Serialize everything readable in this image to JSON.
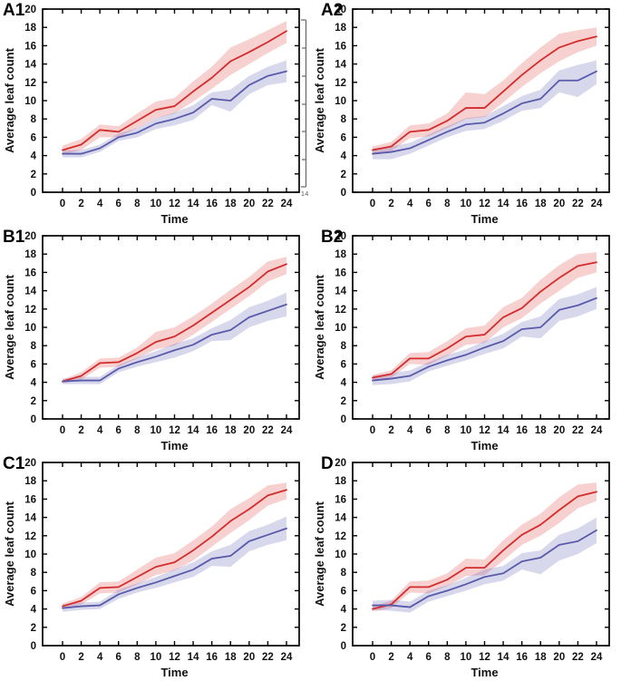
{
  "figure": {
    "background": "#ffffff",
    "axis_color": "#000000",
    "text_color": "#111111"
  },
  "colors": {
    "red_line": "#d42c2c",
    "red_band": "rgba(228,85,85,0.28)",
    "blue_line": "#5a5aaa",
    "blue_band": "rgba(100,100,185,0.25)"
  },
  "axis_fragment": {
    "label": "14"
  },
  "chart_data": [
    {
      "type": "line",
      "panel_label": "A1",
      "xlabel": "Time",
      "ylabel": "Average leaf count",
      "xlim": [
        -2,
        25.5
      ],
      "ylim": [
        0,
        20
      ],
      "xticks": [
        0,
        2,
        4,
        6,
        8,
        10,
        12,
        14,
        16,
        18,
        20,
        22,
        24
      ],
      "yticks": [
        0,
        2,
        4,
        6,
        8,
        10,
        12,
        14,
        16,
        18,
        20
      ],
      "grid": false,
      "legend": "none",
      "x": [
        0,
        2,
        4,
        6,
        8,
        10,
        12,
        14,
        16,
        18,
        20,
        22,
        24
      ],
      "series": [
        {
          "name": "red",
          "mean": [
            4.6,
            5.2,
            6.8,
            6.6,
            7.8,
            9.0,
            9.4,
            11.0,
            12.5,
            14.3,
            15.3,
            16.4,
            17.6
          ],
          "lower": [
            4.1,
            4.6,
            6.0,
            6.0,
            7.0,
            8.1,
            8.6,
            9.9,
            11.3,
            12.8,
            14.0,
            15.2,
            16.3
          ],
          "upper": [
            5.1,
            5.8,
            7.4,
            7.2,
            8.6,
            9.9,
            10.3,
            12.1,
            13.7,
            15.8,
            16.7,
            17.7,
            18.7
          ]
        },
        {
          "name": "blue",
          "mean": [
            4.2,
            4.2,
            4.8,
            6.0,
            6.5,
            7.5,
            8.0,
            8.7,
            10.2,
            10.0,
            11.7,
            12.7,
            13.2
          ],
          "lower": [
            3.8,
            3.8,
            4.4,
            5.6,
            6.0,
            6.9,
            7.3,
            7.9,
            9.5,
            8.8,
            10.7,
            11.7,
            12.0
          ],
          "upper": [
            4.6,
            4.6,
            5.2,
            6.4,
            7.0,
            8.1,
            8.7,
            9.5,
            10.9,
            11.2,
            12.7,
            13.7,
            14.4
          ]
        }
      ]
    },
    {
      "type": "line",
      "panel_label": "A2",
      "xlabel": "Time",
      "ylabel": "Average leaf count",
      "xlim": [
        -2,
        25.5
      ],
      "ylim": [
        0,
        20
      ],
      "xticks": [
        0,
        2,
        4,
        6,
        8,
        10,
        12,
        14,
        16,
        18,
        20,
        22,
        24
      ],
      "yticks": [
        0,
        2,
        4,
        6,
        8,
        10,
        12,
        14,
        16,
        18,
        20
      ],
      "grid": false,
      "legend": "none",
      "x": [
        0,
        2,
        4,
        6,
        8,
        10,
        12,
        14,
        16,
        18,
        20,
        22,
        24
      ],
      "series": [
        {
          "name": "red",
          "mean": [
            4.6,
            5.0,
            6.6,
            6.8,
            7.8,
            9.2,
            9.2,
            11.0,
            12.8,
            14.4,
            15.8,
            16.5,
            17.0
          ],
          "lower": [
            4.2,
            4.5,
            5.9,
            6.1,
            7.0,
            8.0,
            8.2,
            9.8,
            11.5,
            13.0,
            14.3,
            15.3,
            16.0
          ],
          "upper": [
            5.0,
            5.5,
            7.3,
            7.5,
            8.6,
            10.9,
            10.7,
            12.2,
            14.1,
            15.8,
            17.3,
            17.7,
            18.0
          ]
        },
        {
          "name": "blue",
          "mean": [
            4.2,
            4.4,
            4.8,
            5.7,
            6.6,
            7.4,
            7.6,
            8.6,
            9.7,
            10.2,
            12.2,
            12.2,
            13.2
          ],
          "lower": [
            3.6,
            3.6,
            4.2,
            5.1,
            6.0,
            6.7,
            6.9,
            7.8,
            8.9,
            9.2,
            10.9,
            10.4,
            11.8
          ],
          "upper": [
            4.8,
            5.0,
            5.4,
            6.3,
            7.2,
            8.1,
            8.3,
            9.4,
            10.5,
            11.2,
            13.3,
            13.9,
            14.4
          ]
        }
      ]
    },
    {
      "type": "line",
      "panel_label": "B1",
      "xlabel": "Time",
      "ylabel": "Average leaf count",
      "xlim": [
        -2,
        25.5
      ],
      "ylim": [
        0,
        20
      ],
      "xticks": [
        0,
        2,
        4,
        6,
        8,
        10,
        12,
        14,
        16,
        18,
        20,
        22,
        24
      ],
      "yticks": [
        0,
        2,
        4,
        6,
        8,
        10,
        12,
        14,
        16,
        18,
        20
      ],
      "grid": false,
      "legend": "none",
      "x": [
        0,
        2,
        4,
        6,
        8,
        10,
        12,
        14,
        16,
        18,
        20,
        22,
        24
      ],
      "series": [
        {
          "name": "red",
          "mean": [
            4.1,
            4.7,
            6.1,
            6.2,
            7.2,
            8.4,
            9.0,
            10.2,
            11.6,
            13.0,
            14.4,
            16.1,
            16.9
          ],
          "lower": [
            3.9,
            4.3,
            5.6,
            5.7,
            6.6,
            7.6,
            8.0,
            9.2,
            10.6,
            12.0,
            13.4,
            15.0,
            15.8
          ],
          "upper": [
            4.3,
            5.1,
            6.6,
            6.7,
            7.8,
            9.5,
            10.0,
            11.2,
            12.6,
            14.1,
            15.5,
            17.2,
            17.7
          ]
        },
        {
          "name": "blue",
          "mean": [
            4.1,
            4.2,
            4.2,
            5.5,
            6.2,
            6.8,
            7.5,
            8.1,
            9.2,
            9.7,
            11.1,
            11.8,
            12.5
          ],
          "lower": [
            3.8,
            3.8,
            3.8,
            5.1,
            5.7,
            6.2,
            6.7,
            7.4,
            8.5,
            8.6,
            10.0,
            10.7,
            11.2
          ],
          "upper": [
            4.4,
            4.6,
            4.6,
            5.9,
            6.7,
            7.4,
            8.2,
            8.8,
            9.9,
            10.8,
            12.2,
            12.9,
            13.8
          ]
        }
      ]
    },
    {
      "type": "line",
      "panel_label": "B2",
      "xlabel": "Time",
      "ylabel": "Average leaf count",
      "xlim": [
        -2,
        25.5
      ],
      "ylim": [
        0,
        20
      ],
      "xticks": [
        0,
        2,
        4,
        6,
        8,
        10,
        12,
        14,
        16,
        18,
        20,
        22,
        24
      ],
      "yticks": [
        0,
        2,
        4,
        6,
        8,
        10,
        12,
        14,
        16,
        18,
        20
      ],
      "grid": false,
      "legend": "none",
      "x": [
        0,
        2,
        4,
        6,
        8,
        10,
        12,
        14,
        16,
        18,
        20,
        22,
        24
      ],
      "series": [
        {
          "name": "red",
          "mean": [
            4.5,
            4.9,
            6.6,
            6.6,
            7.7,
            9.0,
            9.2,
            11.1,
            12.1,
            13.9,
            15.4,
            16.7,
            17.1
          ],
          "lower": [
            4.2,
            4.5,
            6.0,
            5.9,
            6.9,
            8.1,
            8.3,
            10.0,
            11.0,
            12.6,
            14.0,
            15.4,
            16.0
          ],
          "upper": [
            4.8,
            5.3,
            7.2,
            7.3,
            8.5,
            9.9,
            10.2,
            12.2,
            13.2,
            15.2,
            16.8,
            18.0,
            18.2
          ]
        },
        {
          "name": "blue",
          "mean": [
            4.2,
            4.4,
            4.7,
            5.7,
            6.4,
            7.0,
            7.8,
            8.5,
            9.8,
            10.0,
            11.9,
            12.4,
            13.2
          ],
          "lower": [
            3.7,
            3.8,
            4.1,
            5.2,
            5.8,
            6.4,
            7.1,
            7.7,
            9.0,
            8.8,
            10.7,
            11.2,
            12.0
          ],
          "upper": [
            4.7,
            5.0,
            5.3,
            6.2,
            7.0,
            7.6,
            8.5,
            9.3,
            10.6,
            11.2,
            13.1,
            13.6,
            14.4
          ]
        }
      ]
    },
    {
      "type": "line",
      "panel_label": "C1",
      "xlabel": "Time",
      "ylabel": "Average leaf count",
      "xlim": [
        -2,
        25.5
      ],
      "ylim": [
        0,
        20
      ],
      "xticks": [
        0,
        2,
        4,
        6,
        8,
        10,
        12,
        14,
        16,
        18,
        20,
        22,
        24
      ],
      "yticks": [
        0,
        2,
        4,
        6,
        8,
        10,
        12,
        14,
        16,
        18,
        20
      ],
      "grid": false,
      "legend": "none",
      "x": [
        0,
        2,
        4,
        6,
        8,
        10,
        12,
        14,
        16,
        18,
        20,
        22,
        24
      ],
      "series": [
        {
          "name": "red",
          "mean": [
            4.3,
            4.9,
            6.3,
            6.4,
            7.5,
            8.6,
            9.1,
            10.4,
            11.9,
            13.6,
            14.9,
            16.4,
            17.0
          ],
          "lower": [
            4.0,
            4.5,
            5.7,
            5.8,
            6.7,
            7.7,
            8.2,
            9.3,
            10.8,
            12.3,
            13.7,
            15.3,
            16.0
          ],
          "upper": [
            4.6,
            5.3,
            6.9,
            7.0,
            8.3,
            9.6,
            10.1,
            11.5,
            13.0,
            14.9,
            16.1,
            17.5,
            17.8
          ]
        },
        {
          "name": "blue",
          "mean": [
            4.1,
            4.3,
            4.4,
            5.6,
            6.3,
            6.9,
            7.6,
            8.3,
            9.5,
            9.8,
            11.4,
            12.1,
            12.8
          ],
          "lower": [
            3.7,
            3.9,
            4.0,
            5.1,
            5.8,
            6.3,
            6.9,
            7.5,
            8.7,
            8.6,
            10.3,
            11.0,
            11.5
          ],
          "upper": [
            4.5,
            4.7,
            4.8,
            6.1,
            6.8,
            7.5,
            8.3,
            9.1,
            10.3,
            11.0,
            12.5,
            13.2,
            14.1
          ]
        }
      ]
    },
    {
      "type": "line",
      "panel_label": "D",
      "xlabel": "Time",
      "ylabel": "Average leaf count",
      "xlim": [
        -2,
        25.5
      ],
      "ylim": [
        0,
        20
      ],
      "xticks": [
        0,
        2,
        4,
        6,
        8,
        10,
        12,
        14,
        16,
        18,
        20,
        22,
        24
      ],
      "yticks": [
        0,
        2,
        4,
        6,
        8,
        10,
        12,
        14,
        16,
        18,
        20
      ],
      "grid": false,
      "legend": "none",
      "x": [
        0,
        2,
        4,
        6,
        8,
        10,
        12,
        14,
        16,
        18,
        20,
        22,
        24
      ],
      "series": [
        {
          "name": "red",
          "mean": [
            4.0,
            4.5,
            6.4,
            6.4,
            7.2,
            8.5,
            8.5,
            10.4,
            12.1,
            13.2,
            14.8,
            16.3,
            16.8
          ],
          "lower": [
            3.7,
            4.1,
            5.8,
            5.7,
            6.5,
            7.6,
            7.7,
            9.3,
            11.0,
            12.0,
            13.4,
            15.0,
            15.8
          ],
          "upper": [
            4.3,
            4.9,
            7.0,
            7.1,
            7.9,
            9.5,
            9.4,
            11.5,
            13.2,
            14.4,
            16.2,
            17.6,
            17.8
          ]
        },
        {
          "name": "blue",
          "mean": [
            4.4,
            4.4,
            4.2,
            5.4,
            6.0,
            6.7,
            7.5,
            7.9,
            9.2,
            9.6,
            11.0,
            11.4,
            12.6
          ],
          "lower": [
            3.9,
            3.8,
            3.6,
            4.8,
            5.4,
            6.0,
            6.7,
            7.1,
            8.3,
            7.8,
            9.3,
            10.0,
            11.2
          ],
          "upper": [
            4.9,
            5.0,
            4.8,
            6.0,
            6.6,
            7.4,
            8.3,
            8.7,
            10.1,
            10.4,
            12.1,
            12.8,
            14.0
          ]
        }
      ]
    }
  ]
}
